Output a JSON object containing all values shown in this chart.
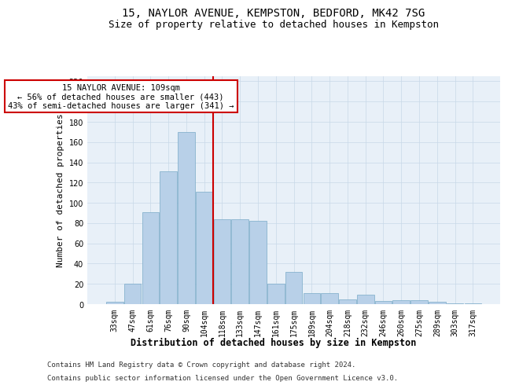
{
  "title_line1": "15, NAYLOR AVENUE, KEMPSTON, BEDFORD, MK42 7SG",
  "title_line2": "Size of property relative to detached houses in Kempston",
  "xlabel": "Distribution of detached houses by size in Kempston",
  "ylabel": "Number of detached properties",
  "categories": [
    "33sqm",
    "47sqm",
    "61sqm",
    "76sqm",
    "90sqm",
    "104sqm",
    "118sqm",
    "133sqm",
    "147sqm",
    "161sqm",
    "175sqm",
    "189sqm",
    "204sqm",
    "218sqm",
    "232sqm",
    "246sqm",
    "260sqm",
    "275sqm",
    "289sqm",
    "303sqm",
    "317sqm"
  ],
  "values": [
    2,
    20,
    91,
    131,
    170,
    111,
    84,
    84,
    82,
    20,
    32,
    11,
    11,
    5,
    9,
    3,
    4,
    4,
    2,
    1,
    1
  ],
  "bar_color": "#b8d0e8",
  "bar_edge_color": "#7aaac8",
  "property_label": "15 NAYLOR AVENUE: 109sqm",
  "annotation_line2": "← 56% of detached houses are smaller (443)",
  "annotation_line3": "43% of semi-detached houses are larger (341) →",
  "vline_color": "#cc0000",
  "vline_position": 5.5,
  "annotation_box_color": "#ffffff",
  "annotation_box_edge_color": "#cc0000",
  "ylim": [
    0,
    225
  ],
  "yticks": [
    0,
    20,
    40,
    60,
    80,
    100,
    120,
    140,
    160,
    180,
    200,
    220
  ],
  "grid_color": "#c8d8e8",
  "background_color": "#e8f0f8",
  "footer_line1": "Contains HM Land Registry data © Crown copyright and database right 2024.",
  "footer_line2": "Contains public sector information licensed under the Open Government Licence v3.0.",
  "title_fontsize": 10,
  "subtitle_fontsize": 9,
  "tick_fontsize": 7,
  "xlabel_fontsize": 8.5,
  "ylabel_fontsize": 8,
  "annotation_fontsize": 7.5,
  "footer_fontsize": 6.5
}
